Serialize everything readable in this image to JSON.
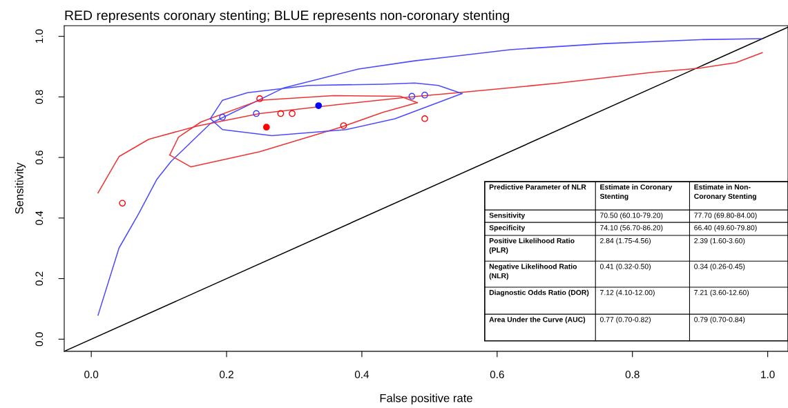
{
  "chart_data": {
    "type": "line",
    "title": "RED represents coronary stenting; BLUE represents non-coronary stenting",
    "xlabel": "False positive rate",
    "ylabel": "Sensitivity",
    "xlim": [
      -0.04,
      1.03
    ],
    "ylim": [
      -0.04,
      1.035
    ],
    "xticks": [
      {
        "value": 0,
        "label": "0.0"
      },
      {
        "value": 0.2,
        "label": "0.2"
      },
      {
        "value": 0.4,
        "label": "0.4"
      },
      {
        "value": 0.6,
        "label": "0.6"
      },
      {
        "value": 0.8,
        "label": "0.8"
      },
      {
        "value": 1,
        "label": "1.0"
      }
    ],
    "yticks": [
      {
        "value": 0,
        "label": "0.0"
      },
      {
        "value": 0.2,
        "label": "0.2"
      },
      {
        "value": 0.4,
        "label": "0.4"
      },
      {
        "value": 0.6,
        "label": "0.6"
      },
      {
        "value": 0.8,
        "label": "0.8"
      },
      {
        "value": 1,
        "label": "1.0"
      }
    ],
    "grid": false,
    "legend": false,
    "series": [
      {
        "color": "#000000",
        "x": [
          -0.04,
          1.03
        ],
        "values": [
          -0.04,
          1.03
        ]
      },
      {
        "color": "#4a4aff",
        "x": [
          0.01,
          0.041,
          0.07,
          0.097,
          0.118,
          0.176,
          0.285,
          0.395,
          0.478,
          0.526,
          0.619,
          0.759,
          0.9,
          0.991
        ],
        "values": [
          0.079,
          0.301,
          0.414,
          0.528,
          0.587,
          0.712,
          0.83,
          0.892,
          0.919,
          0.931,
          0.956,
          0.976,
          0.989,
          0.992
        ]
      },
      {
        "color": "#ee3333",
        "x": [
          0.01,
          0.041,
          0.085,
          0.157,
          0.249,
          0.358,
          0.468,
          0.548,
          0.689,
          0.83,
          0.9,
          0.953,
          0.992
        ],
        "values": [
          0.483,
          0.603,
          0.66,
          0.704,
          0.745,
          0.773,
          0.799,
          0.815,
          0.845,
          0.881,
          0.895,
          0.913,
          0.946
        ]
      },
      {
        "color": "#ee3333",
        "x": [
          0.116,
          0.129,
          0.162,
          0.249,
          0.358,
          0.457,
          0.482
        ],
        "values": [
          0.608,
          0.667,
          0.717,
          0.789,
          0.804,
          0.802,
          0.781
        ]
      },
      {
        "color": "#ee3333",
        "x": [
          0.116,
          0.147,
          0.249,
          0.369,
          0.431,
          0.482
        ],
        "values": [
          0.608,
          0.569,
          0.619,
          0.7,
          0.749,
          0.781
        ]
      },
      {
        "color": "#4a4aff",
        "x": [
          0.176,
          0.194,
          0.231,
          0.322,
          0.431,
          0.478,
          0.513,
          0.548
        ],
        "values": [
          0.728,
          0.789,
          0.814,
          0.838,
          0.842,
          0.846,
          0.838,
          0.811
        ]
      },
      {
        "color": "#4a4aff",
        "x": [
          0.176,
          0.194,
          0.267,
          0.377,
          0.449,
          0.548
        ],
        "values": [
          0.728,
          0.692,
          0.672,
          0.692,
          0.728,
          0.811
        ]
      },
      {
        "type": "scatter",
        "color": "#ff0000",
        "marker": "circle",
        "x": [
          0.046,
          0.249,
          0.28,
          0.297,
          0.373,
          0.493
        ],
        "values": [
          0.449,
          0.794,
          0.745,
          0.745,
          0.705,
          0.728
        ]
      },
      {
        "type": "scatter",
        "color": "#3a3aff",
        "marker": "circle",
        "x": [
          0.194,
          0.244,
          0.474,
          0.493
        ],
        "values": [
          0.733,
          0.745,
          0.802,
          0.806
        ]
      },
      {
        "type": "scatter",
        "color": "#ff0000",
        "marker": "circle",
        "x": [
          0.259
        ],
        "values": [
          0.7
        ]
      },
      {
        "type": "scatter",
        "color": "#0000ff",
        "marker": "circle",
        "x": [
          0.336
        ],
        "values": [
          0.771
        ]
      }
    ],
    "annotations": [
      "Predictive Parameter of NLR",
      "Estimate in Coronary\nStenting",
      "Estimate in Non-\nCoronary Stenting",
      "Sensitivity",
      "70.50 (60.10-79.20)",
      "77.70 (69.80-84.00)",
      "Specificity",
      "74.10 (56.70-86.20)",
      "66.40 (49.60-79.80)",
      "Positive Likelihood Ratio\n(PLR)",
      "2.84 (1.75-4.56)",
      "2.39 (1.60-3.60)",
      "Negative Likelihood Ratio\n(NLR)",
      "0.41 (0.32-0.50)",
      "0.34 (0.26-0.45)",
      "Diagnostic Odds Ratio (DOR)",
      "7.12 (4.10-12.00)",
      "7.21 (3.60-12.60)",
      "Area Under the Curve (AUC)",
      "0.77 (0.70-0.82)",
      "0.79 (0.70-0.84)"
    ]
  }
}
